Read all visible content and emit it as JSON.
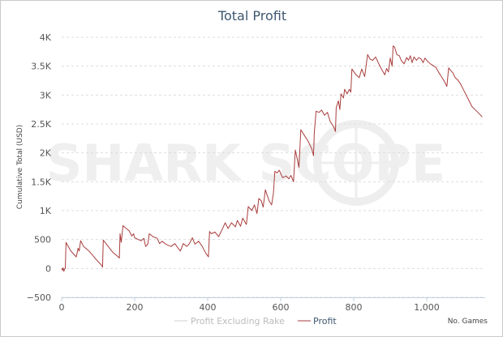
{
  "chart_data": {
    "type": "line",
    "title": "Total Profit",
    "ylabel": "Cumulative Total (USD)",
    "xlabel": "No. Games",
    "watermark": "SHARK SCOPE",
    "xlim": [
      0,
      1160
    ],
    "ylim": [
      -500,
      4000
    ],
    "x_ticks": [
      0,
      200,
      400,
      600,
      800,
      1000
    ],
    "x_tick_labels": [
      "0",
      "200",
      "400",
      "600",
      "800",
      "1,000"
    ],
    "y_ticks": [
      -500,
      0,
      500,
      1000,
      1500,
      2000,
      2500,
      3000,
      3500,
      4000
    ],
    "y_tick_labels": [
      "−500",
      "0",
      "500",
      "1K",
      "1.5K",
      "2K",
      "2.5K",
      "3K",
      "3.5K",
      "4K"
    ],
    "grid": true,
    "legend_position": "bottom-center",
    "series": [
      {
        "name": "Profit Excluding Rake",
        "color": "#cfcfcf",
        "values": []
      },
      {
        "name": "Profit",
        "color": "#aa3d3d",
        "points": [
          [
            0,
            0
          ],
          [
            2,
            -30
          ],
          [
            4,
            10
          ],
          [
            6,
            -50
          ],
          [
            8,
            -10
          ],
          [
            10,
            0
          ],
          [
            12,
            450
          ],
          [
            25,
            300
          ],
          [
            40,
            200
          ],
          [
            45,
            350
          ],
          [
            48,
            300
          ],
          [
            52,
            480
          ],
          [
            60,
            380
          ],
          [
            75,
            300
          ],
          [
            95,
            150
          ],
          [
            110,
            50
          ],
          [
            112,
            20
          ],
          [
            114,
            490
          ],
          [
            125,
            400
          ],
          [
            140,
            280
          ],
          [
            155,
            200
          ],
          [
            158,
            180
          ],
          [
            160,
            600
          ],
          [
            163,
            450
          ],
          [
            168,
            740
          ],
          [
            175,
            700
          ],
          [
            185,
            650
          ],
          [
            192,
            560
          ],
          [
            197,
            600
          ],
          [
            200,
            530
          ],
          [
            210,
            500
          ],
          [
            218,
            480
          ],
          [
            225,
            520
          ],
          [
            230,
            380
          ],
          [
            236,
            420
          ],
          [
            240,
            600
          ],
          [
            250,
            550
          ],
          [
            262,
            520
          ],
          [
            268,
            430
          ],
          [
            275,
            470
          ],
          [
            285,
            420
          ],
          [
            292,
            400
          ],
          [
            300,
            380
          ],
          [
            310,
            430
          ],
          [
            318,
            360
          ],
          [
            325,
            300
          ],
          [
            333,
            430
          ],
          [
            343,
            380
          ],
          [
            350,
            430
          ],
          [
            358,
            530
          ],
          [
            365,
            420
          ],
          [
            375,
            470
          ],
          [
            385,
            380
          ],
          [
            395,
            260
          ],
          [
            402,
            200
          ],
          [
            405,
            640
          ],
          [
            410,
            600
          ],
          [
            420,
            630
          ],
          [
            430,
            550
          ],
          [
            440,
            680
          ],
          [
            448,
            790
          ],
          [
            456,
            690
          ],
          [
            465,
            790
          ],
          [
            476,
            720
          ],
          [
            481,
            830
          ],
          [
            490,
            730
          ],
          [
            496,
            870
          ],
          [
            506,
            760
          ],
          [
            511,
            1070
          ],
          [
            521,
            1000
          ],
          [
            528,
            1100
          ],
          [
            535,
            950
          ],
          [
            540,
            1210
          ],
          [
            547,
            1170
          ],
          [
            552,
            1060
          ],
          [
            558,
            1360
          ],
          [
            568,
            1170
          ],
          [
            575,
            1100
          ],
          [
            580,
            1300
          ],
          [
            584,
            1680
          ],
          [
            590,
            1650
          ],
          [
            596,
            1700
          ],
          [
            605,
            1570
          ],
          [
            615,
            1600
          ],
          [
            622,
            1550
          ],
          [
            628,
            1610
          ],
          [
            635,
            1500
          ],
          [
            640,
            2050
          ],
          [
            650,
            1750
          ],
          [
            655,
            2400
          ],
          [
            665,
            2300
          ],
          [
            675,
            2200
          ],
          [
            685,
            2070
          ],
          [
            690,
            1950
          ],
          [
            692,
            2350
          ],
          [
            697,
            2720
          ],
          [
            705,
            2700
          ],
          [
            712,
            2740
          ],
          [
            720,
            2650
          ],
          [
            728,
            2700
          ],
          [
            735,
            2550
          ],
          [
            745,
            2450
          ],
          [
            750,
            2370
          ],
          [
            752,
            2780
          ],
          [
            758,
            2900
          ],
          [
            762,
            2750
          ],
          [
            765,
            3020
          ],
          [
            772,
            2950
          ],
          [
            775,
            3100
          ],
          [
            782,
            3020
          ],
          [
            788,
            3100
          ],
          [
            792,
            3050
          ],
          [
            795,
            3450
          ],
          [
            805,
            3360
          ],
          [
            815,
            3300
          ],
          [
            822,
            3450
          ],
          [
            830,
            3320
          ],
          [
            838,
            3700
          ],
          [
            845,
            3620
          ],
          [
            852,
            3600
          ],
          [
            860,
            3660
          ],
          [
            868,
            3550
          ],
          [
            875,
            3460
          ],
          [
            885,
            3350
          ],
          [
            890,
            3460
          ],
          [
            895,
            3400
          ],
          [
            900,
            3640
          ],
          [
            905,
            3500
          ],
          [
            908,
            3850
          ],
          [
            912,
            3830
          ],
          [
            918,
            3700
          ],
          [
            925,
            3680
          ],
          [
            930,
            3600
          ],
          [
            938,
            3540
          ],
          [
            945,
            3650
          ],
          [
            950,
            3600
          ],
          [
            955,
            3680
          ],
          [
            960,
            3560
          ],
          [
            965,
            3660
          ],
          [
            972,
            3600
          ],
          [
            978,
            3650
          ],
          [
            985,
            3620
          ],
          [
            990,
            3560
          ],
          [
            995,
            3640
          ],
          [
            1000,
            3600
          ],
          [
            1010,
            3540
          ],
          [
            1020,
            3500
          ],
          [
            1025,
            3480
          ],
          [
            1032,
            3400
          ],
          [
            1040,
            3320
          ],
          [
            1048,
            3240
          ],
          [
            1055,
            3150
          ],
          [
            1060,
            3470
          ],
          [
            1065,
            3430
          ],
          [
            1072,
            3380
          ],
          [
            1078,
            3300
          ],
          [
            1085,
            3260
          ],
          [
            1092,
            3200
          ],
          [
            1100,
            3100
          ],
          [
            1108,
            3000
          ],
          [
            1116,
            2900
          ],
          [
            1124,
            2800
          ],
          [
            1132,
            2750
          ],
          [
            1140,
            2700
          ],
          [
            1148,
            2650
          ],
          [
            1152,
            2620
          ]
        ]
      }
    ]
  }
}
